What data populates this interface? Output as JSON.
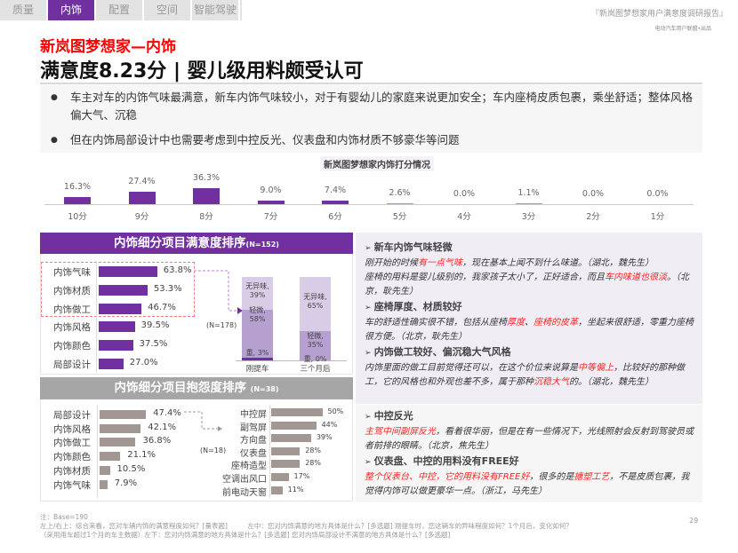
{
  "tabs": [
    "质量",
    "内饰",
    "配置",
    "空间",
    "智能驾驶"
  ],
  "active_tab": 1,
  "report": {
    "title": "『新岚图梦想家用户满意度调研报告』",
    "publisher": "电动汽车用户联盟•出品"
  },
  "subtitle": "新岚图梦想家—内饰",
  "title": "满意度8.23分 | 婴儿级用料颇受认可",
  "bullets": [
    "车主对车的内饰气味最满意，新车内饰气味较小，对于有婴幼儿的家庭来说更加安全；车内座椅皮质包裹，乘坐舒适；整体风格偏大气、沉稳",
    "但在内饰局部设计中也需要考虑到中控反光、仪表盘和内饰材质不够豪华等问题"
  ],
  "accent": "#7030a0",
  "chart_data": [
    {
      "type": "bar",
      "title": "新岚图梦想家内饰打分情况",
      "categories": [
        "10分",
        "9分",
        "8分",
        "7分",
        "6分",
        "5分",
        "4分",
        "3分",
        "2分",
        "1分"
      ],
      "values": [
        16.3,
        27.4,
        36.3,
        9.0,
        7.4,
        2.6,
        0.0,
        1.1,
        0.0,
        0.0
      ],
      "labels": [
        "16.3%",
        "27.4%",
        "36.3%",
        "9.0%",
        "7.4%",
        "2.6%",
        "0.0%",
        "1.1%",
        "0.0%",
        "0.0%"
      ]
    },
    {
      "type": "bar",
      "title": "内饰细分项目满意度排序",
      "n": "(N=152)",
      "categories": [
        "内饰气味",
        "内饰材质",
        "内饰做工",
        "内饰风格",
        "内饰颜色",
        "局部设计"
      ],
      "values": [
        63.8,
        53.3,
        46.7,
        39.5,
        37.5,
        27.0
      ],
      "labels": [
        "63.8%",
        "53.3%",
        "46.7%",
        "39.5%",
        "37.5%",
        "27.0%"
      ]
    },
    {
      "type": "stacked-bar",
      "n": "(N=178)",
      "categories": [
        "刚提车",
        "三个月后"
      ],
      "series": [
        {
          "name": "无异味",
          "values": [
            39,
            65
          ]
        },
        {
          "name": "轻微",
          "values": [
            58,
            35
          ]
        },
        {
          "name": "重",
          "values": [
            3,
            0
          ]
        }
      ],
      "labels": [
        [
          "无异味,",
          "39%"
        ],
        [
          "轻微,",
          "58%"
        ],
        [
          "重, 3%"
        ],
        [
          "无异味,",
          "65%"
        ],
        [
          "轻微,",
          "35%"
        ],
        [
          "重, 0%"
        ]
      ]
    },
    {
      "type": "bar",
      "title": "内饰细分项目抱怨度排序",
      "n": "(N=38)",
      "categories": [
        "局部设计",
        "内饰风格",
        "内饰做工",
        "内饰颜色",
        "内饰材质",
        "内饰气味"
      ],
      "values": [
        47.4,
        42.1,
        36.8,
        21.1,
        10.5,
        7.9
      ],
      "labels": [
        "47.4%",
        "42.1%",
        "36.8%",
        "21.1%",
        "10.5%",
        "7.9%"
      ]
    },
    {
      "type": "bar",
      "n": "(N=18)",
      "categories": [
        "中控屏",
        "副驾屏",
        "方向盘",
        "仪表盘",
        "座椅造型",
        "空调出风口",
        "前电动天窗"
      ],
      "values": [
        50,
        44,
        39,
        28,
        28,
        17,
        11
      ],
      "labels": [
        "50%",
        "44%",
        "39%",
        "28%",
        "28%",
        "17%",
        "11%"
      ]
    }
  ],
  "quotes": [
    {
      "group": 1,
      "head": "新车内饰气味轻微",
      "lines": [
        [
          {
            "t": "刚开始的时候"
          },
          {
            "t": "有一点气味",
            "red": true
          },
          {
            "t": "，现在基本上闻不到什么味道。（湖北，魏先生）"
          }
        ],
        [
          {
            "t": "座椅的用料是婴儿级别的，我家孩子太小了，正好适合，而且"
          },
          {
            "t": "车内味道也很淡",
            "red": true
          },
          {
            "t": "。（北京，耿先生）"
          }
        ]
      ]
    },
    {
      "group": 1,
      "head": "座椅厚度、材质较好",
      "lines": [
        [
          {
            "t": "车的舒适性确实很不错，包括从座椅"
          },
          {
            "t": "厚度",
            "red": true
          },
          {
            "t": "、"
          },
          {
            "t": "座椅的皮革",
            "red": true
          },
          {
            "t": "，坐起来很舒适，零重力座椅很方便。（北京，耿先生）"
          }
        ]
      ]
    },
    {
      "group": 1,
      "head": "内饰做工较好、偏沉稳大气风格",
      "lines": [
        [
          {
            "t": "内饰里面的做工目前觉得还可以，在这个价位来说算是"
          },
          {
            "t": "中等偏上",
            "red": true
          },
          {
            "t": "，比较好的那种做工，它的风格也和外观也差不多，属于那种"
          },
          {
            "t": "沉稳大气",
            "red": true
          },
          {
            "t": "的。（湖北，魏先生）"
          }
        ]
      ]
    },
    {
      "group": 2,
      "head": "中控反光",
      "lines": [
        [
          {
            "t": "主驾中间副屏反光",
            "red": true
          },
          {
            "t": "，看着很华丽，但是在有一些情况下，光线照射会反射到驾驶员或者前排的眼睛。（北京，焦先生）"
          }
        ]
      ]
    },
    {
      "group": 2,
      "head": "仪表盘、中控的用料没有FREE好",
      "lines": [
        [
          {
            "t": "整个仪表台、中控，它的用料没有FREE好",
            "red": true
          },
          {
            "t": "，很多的是"
          },
          {
            "t": "搪塑工艺",
            "red": true
          },
          {
            "t": "，不是皮质包裹，我觉得内饰可以做更豪华一点。（浙江，马先生）"
          }
        ]
      ]
    }
  ],
  "footer": {
    "note": "注：Base=190",
    "line1": "左上/右上：综合来看，您对车辆内饰的满意程度如何？[量表题]　　　左中：您对内饰满意的地方具体是什么？[多选题] 刚提车时，您这辆车的异味程度如何？1个月后，变化如何？",
    "line2": "（采用用车超过1个月的车主数据）左下：您对内饰满意的地方具体是什么？[多选题] 您对内饰局部设计不满意的地方具体是什么？[多选题]",
    "page": "29"
  }
}
